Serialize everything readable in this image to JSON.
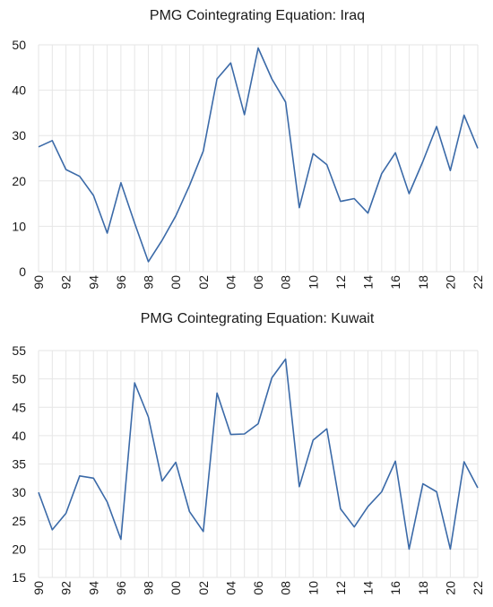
{
  "chart_data": [
    {
      "type": "line",
      "title": "PMG Cointegrating Equation: Iraq",
      "xlabel": "",
      "ylabel": "",
      "ylim": [
        0,
        50
      ],
      "y_ticks": [
        "0",
        "10",
        "20",
        "30",
        "40",
        "50"
      ],
      "x_ticks": [
        "90",
        "92",
        "94",
        "96",
        "98",
        "00",
        "02",
        "04",
        "06",
        "08",
        "10",
        "12",
        "14",
        "16",
        "18",
        "20",
        "22"
      ],
      "grid": true,
      "color": "#3b6aa8",
      "x": [
        1990,
        1991,
        1992,
        1993,
        1994,
        1995,
        1996,
        1997,
        1998,
        1999,
        2000,
        2001,
        2002,
        2003,
        2004,
        2005,
        2006,
        2007,
        2008,
        2009,
        2010,
        2011,
        2012,
        2013,
        2014,
        2015,
        2016,
        2017,
        2018,
        2019,
        2020,
        2021,
        2022
      ],
      "values": [
        27.5,
        28.9,
        22.5,
        21.0,
        16.8,
        8.5,
        19.6,
        10.7,
        2.2,
        6.9,
        12.3,
        19.0,
        26.6,
        42.5,
        46.0,
        34.6,
        49.3,
        42.5,
        37.4,
        14.1,
        26.0,
        23.6,
        15.5,
        16.1,
        12.9,
        21.6,
        26.2,
        17.2,
        24.3,
        32.0,
        22.3,
        34.5,
        27.2
      ]
    },
    {
      "type": "line",
      "title": "PMG Cointegrating Equation: Kuwait",
      "xlabel": "",
      "ylabel": "",
      "ylim": [
        15,
        55
      ],
      "y_ticks": [
        "15",
        "20",
        "25",
        "30",
        "35",
        "40",
        "45",
        "50",
        "55"
      ],
      "x_ticks": [
        "90",
        "92",
        "94",
        "96",
        "98",
        "00",
        "02",
        "04",
        "06",
        "08",
        "10",
        "12",
        "14",
        "16",
        "18",
        "20",
        "22"
      ],
      "grid": true,
      "color": "#3b6aa8",
      "x": [
        1990,
        1991,
        1992,
        1993,
        1994,
        1995,
        1996,
        1997,
        1998,
        1999,
        2000,
        2001,
        2002,
        2003,
        2004,
        2005,
        2006,
        2007,
        2008,
        2009,
        2010,
        2011,
        2012,
        2013,
        2014,
        2015,
        2016,
        2017,
        2018,
        2019,
        2020,
        2021,
        2022
      ],
      "values": [
        30.0,
        23.4,
        26.3,
        32.9,
        32.5,
        28.3,
        21.7,
        49.3,
        43.3,
        32.0,
        35.3,
        26.6,
        23.1,
        47.5,
        40.2,
        40.3,
        42.1,
        50.2,
        53.5,
        31.0,
        39.2,
        41.2,
        27.1,
        23.9,
        27.5,
        30.1,
        35.5,
        20.0,
        31.5,
        30.1,
        20.0,
        35.4,
        30.8
      ]
    }
  ]
}
